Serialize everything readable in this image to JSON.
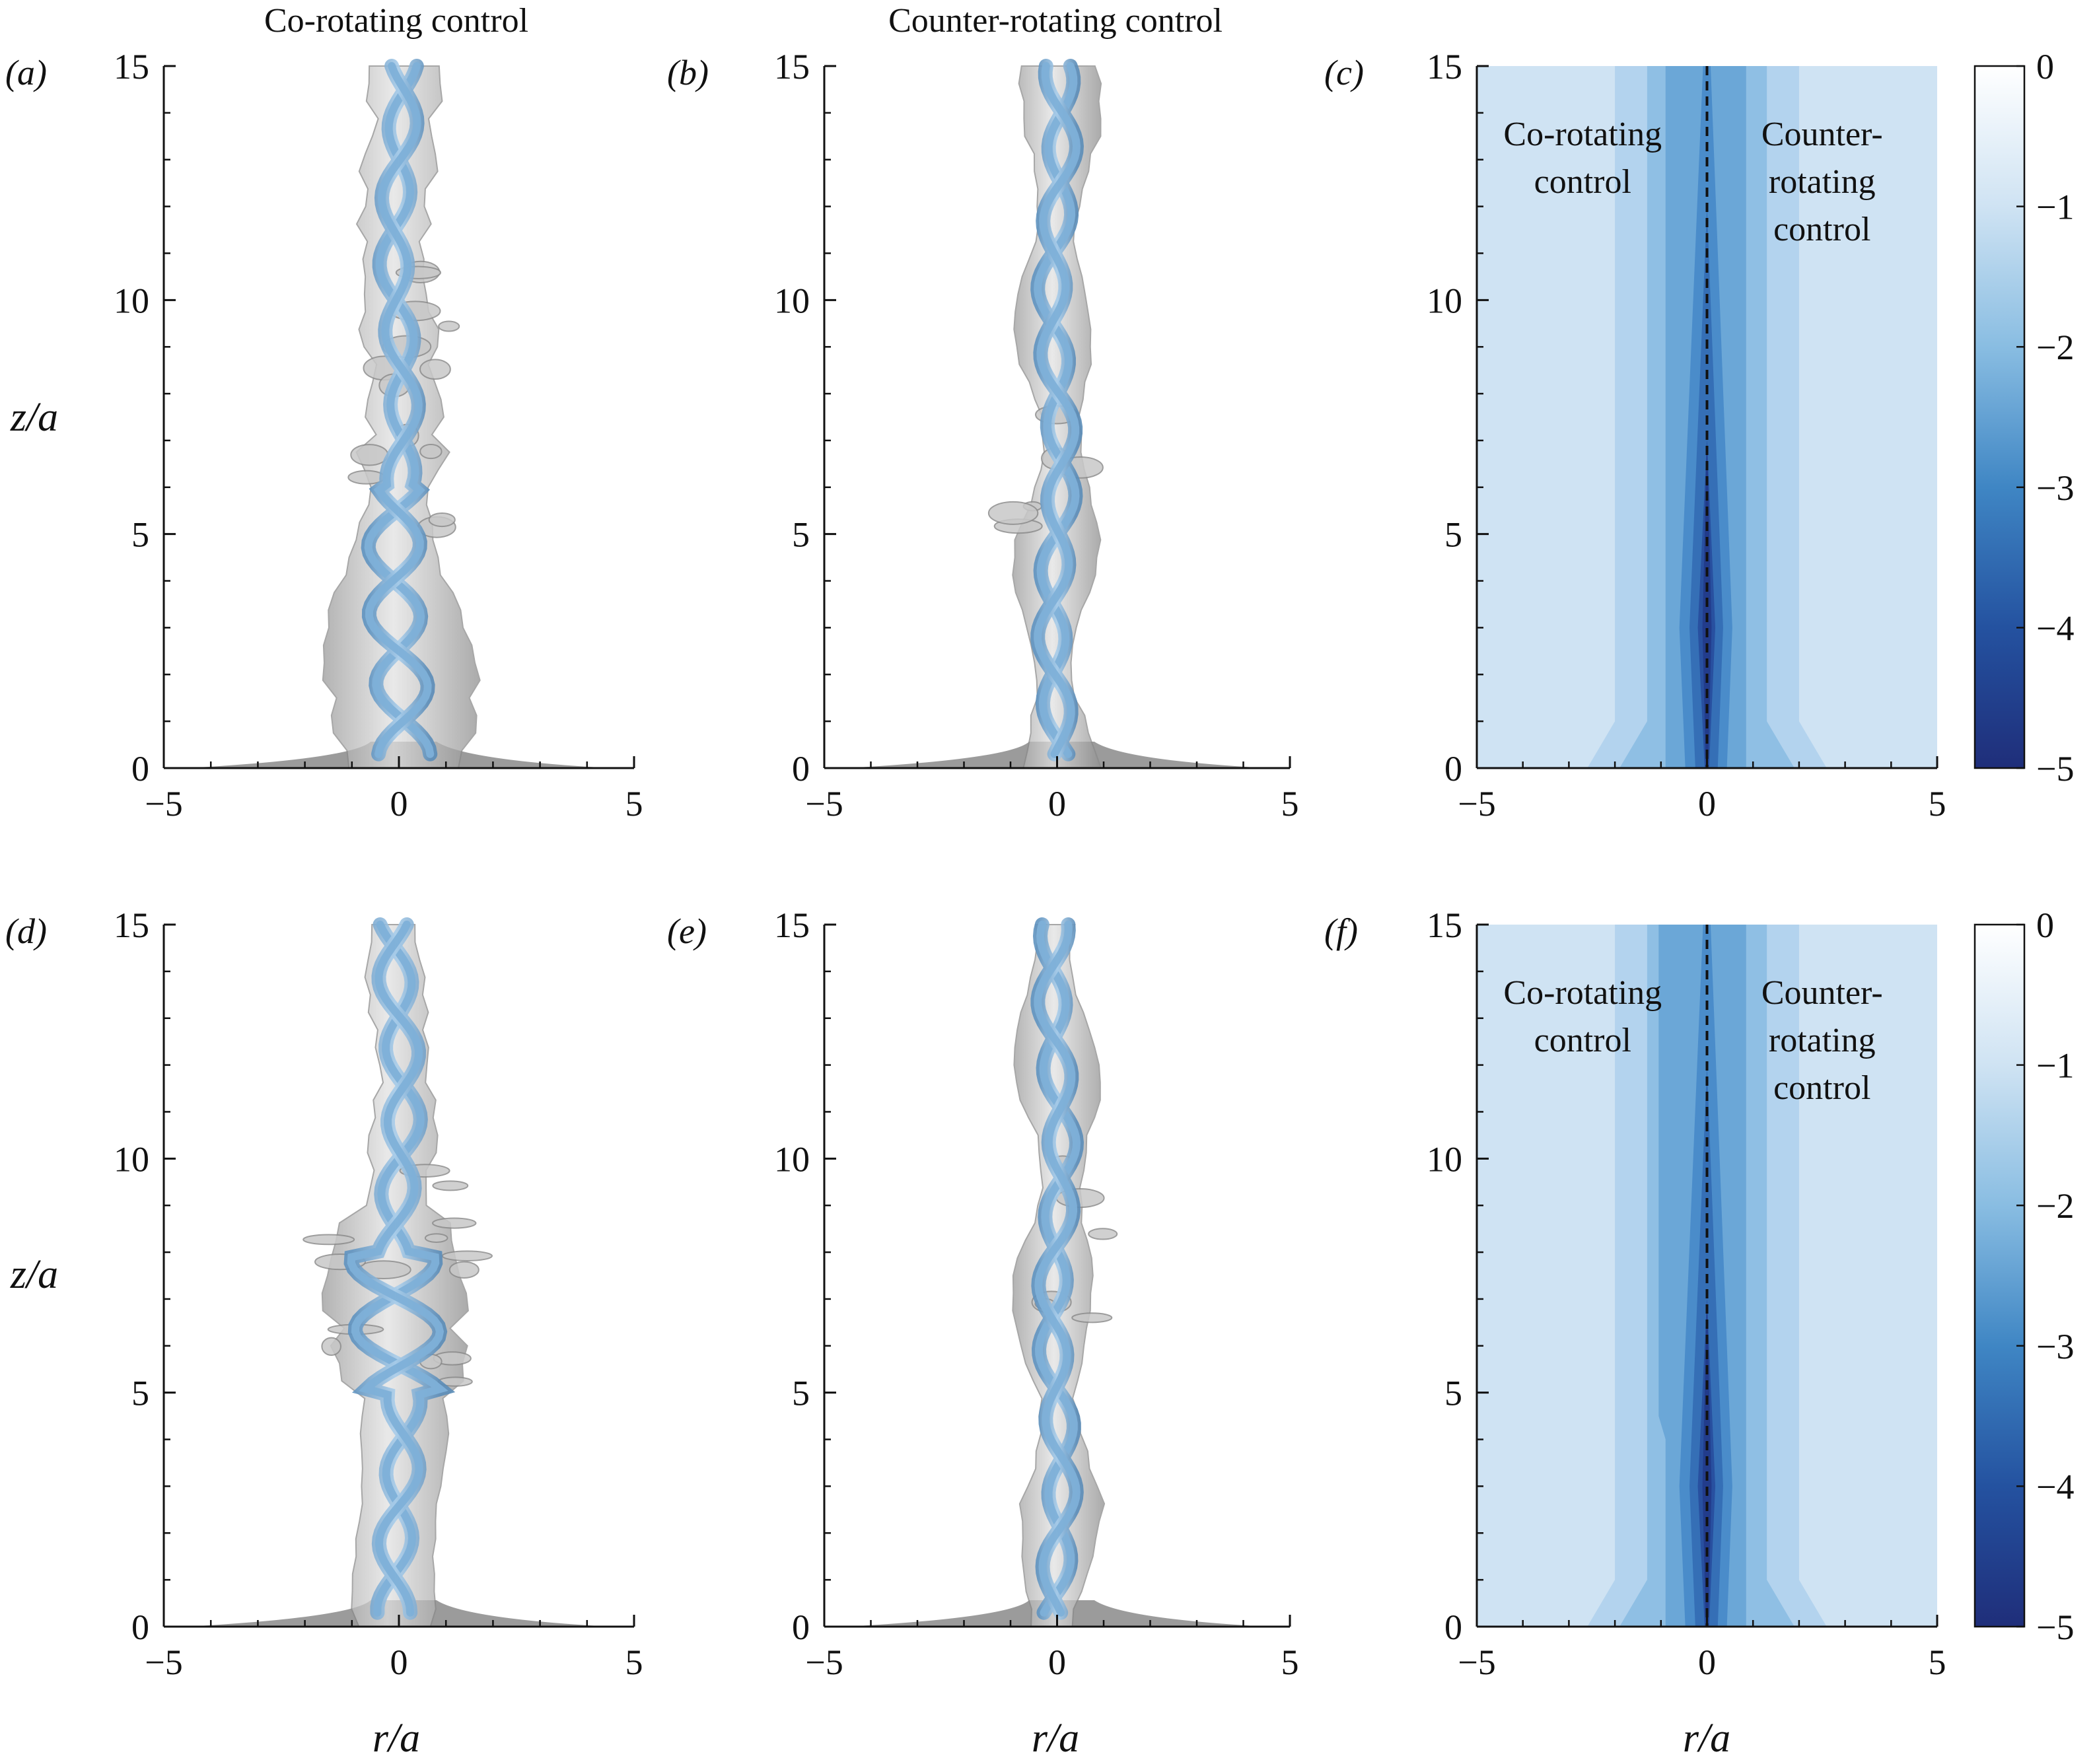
{
  "columns": {
    "left": "Co-rotating control",
    "middle": "Counter-rotating control"
  },
  "panel_labels": {
    "a": "(a)",
    "b": "(b)",
    "c": "(c)",
    "d": "(d)",
    "e": "(e)",
    "f": "(f)"
  },
  "axes": {
    "y_label": "z/a",
    "x_label": "r/a",
    "x_ticks": [
      "−5",
      "0",
      "5"
    ],
    "y_ticks": [
      "0",
      "5",
      "10",
      "15"
    ],
    "x_range": [
      -5,
      5
    ],
    "y_range": [
      0,
      15
    ]
  },
  "annotations": {
    "left_side": [
      "Co-rotating",
      "control"
    ],
    "right_side": [
      "Counter-",
      "rotating",
      "control"
    ]
  },
  "colorbar": {
    "ticks": [
      "0",
      "−1",
      "−2",
      "−3",
      "−4",
      "−5"
    ],
    "range": [
      -5,
      0
    ],
    "color_low": "#1f2e7a",
    "color_high": "#ffffff"
  },
  "colors": {
    "isosurface_grey": "#b9b9b9",
    "vortex_core_blue": "#7eb0d8",
    "contour_background": "#cfe3f3",
    "centerline": "#111111"
  }
}
